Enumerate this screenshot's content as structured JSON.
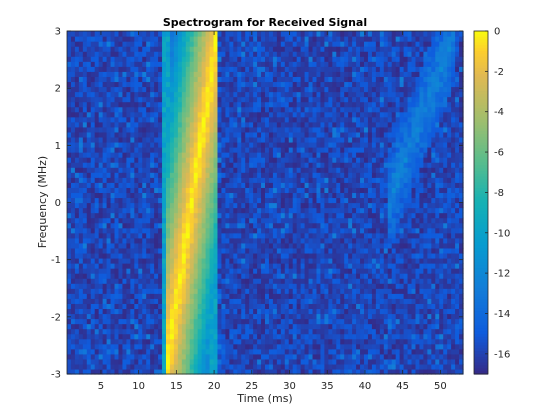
{
  "chart_data": {
    "type": "heatmap",
    "title": "Spectrogram for Received Signal",
    "xlabel": "Time (ms)",
    "ylabel": "Frequency (MHz)",
    "xlim": [
      0.5,
      53
    ],
    "ylim": [
      -3,
      3
    ],
    "x_ticks": [
      5,
      10,
      15,
      20,
      25,
      30,
      35,
      40,
      45,
      50
    ],
    "y_ticks": [
      3,
      2,
      1,
      0,
      -1,
      -2,
      -3
    ],
    "colorbar": {
      "colormap": "parula",
      "limits": [
        -17,
        0
      ],
      "ticks": [
        0,
        -2,
        -4,
        -6,
        -8,
        -10,
        -12,
        -14,
        -16
      ]
    },
    "grid": false,
    "features": [
      {
        "kind": "chirp",
        "t_start": 13.5,
        "t_end": 20.5,
        "f_start": -3,
        "f_end": 3,
        "level": 0
      },
      {
        "kind": "wideband-edge",
        "t": 13.8,
        "level": -10
      },
      {
        "kind": "wideband-edge",
        "t": 20.0,
        "level": -10
      },
      {
        "kind": "weak-chirp",
        "t_start": 43,
        "t_end": 52,
        "f_start": 0,
        "f_end": 3,
        "level": -12.5
      }
    ],
    "background_level": -16
  }
}
